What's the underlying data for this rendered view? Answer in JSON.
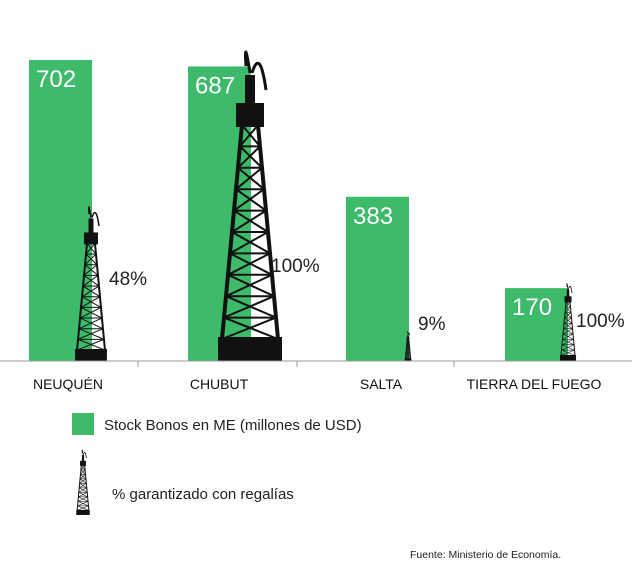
{
  "chart_data": {
    "type": "bar",
    "categories": [
      "NEUQUÉN",
      "CHUBUT",
      "SALTA",
      "TIERRA DEL FUEGO"
    ],
    "series": [
      {
        "name": "Stock Bonos en ME (millones de USD)",
        "values": [
          702,
          687,
          383,
          170
        ],
        "color": "#3dbb6b"
      },
      {
        "name": "% garantizado con regalías",
        "values": [
          48,
          100,
          9,
          100
        ],
        "labels": [
          "48%",
          "100%",
          "9%",
          "100%"
        ],
        "icon": "oil-rig-icon"
      }
    ],
    "value_labels": [
      "702",
      "687",
      "383",
      "170"
    ],
    "grid": false
  },
  "legend": {
    "bar_label": "Stock Bonos en ME (millones de USD)",
    "rig_label": "% garantizado con regalías"
  },
  "source": "Fuente: Ministerio de Economía."
}
